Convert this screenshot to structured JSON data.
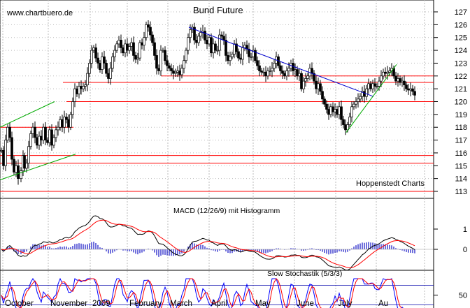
{
  "watermark": "www.chartbuero.de",
  "chart_data": [
    {
      "type": "candlestick",
      "title": "Bund Future",
      "source_label": "Hoppenstedt Charts",
      "x_months": [
        "October",
        "November",
        "2009",
        "February",
        "March",
        "April",
        "May",
        "June",
        "July",
        "Au"
      ],
      "ylim": [
        113,
        127
      ],
      "y_ticks": [
        113,
        114,
        115,
        116,
        117,
        118,
        119,
        120,
        121,
        122,
        123,
        124,
        125,
        126,
        127
      ],
      "horizontal_levels": [
        113.0,
        115.2,
        115.8,
        118.0,
        120.0,
        121.5,
        122.0
      ],
      "close_path": [
        [
          0,
          116.2
        ],
        [
          3,
          115.0
        ],
        [
          6,
          117.0
        ],
        [
          9,
          118.0
        ],
        [
          12,
          117.2
        ],
        [
          15,
          115.5
        ],
        [
          18,
          114.5
        ],
        [
          21,
          115.0
        ],
        [
          24,
          114.0
        ],
        [
          28,
          114.6
        ],
        [
          31,
          115.8
        ],
        [
          33,
          114.8
        ],
        [
          36,
          115.2
        ],
        [
          39,
          116.5
        ],
        [
          42,
          117.5
        ],
        [
          45,
          118.0
        ],
        [
          48,
          117.2
        ],
        [
          51,
          116.6
        ],
        [
          54,
          117.3
        ],
        [
          57,
          117.0
        ],
        [
          60,
          118.0
        ],
        [
          63,
          117.0
        ],
        [
          66,
          116.8
        ],
        [
          69,
          117.8
        ],
        [
          72,
          116.6
        ],
        [
          75,
          117.2
        ],
        [
          78,
          117.8
        ],
        [
          81,
          118.0
        ],
        [
          84,
          118.6
        ],
        [
          87,
          118.0
        ],
        [
          90,
          118.8
        ],
        [
          93,
          118.6
        ],
        [
          96,
          118.0
        ],
        [
          99,
          119.0
        ],
        [
          102,
          120.0
        ],
        [
          105,
          121.0
        ],
        [
          108,
          120.6
        ],
        [
          111,
          121.2
        ],
        [
          114,
          121.0
        ],
        [
          117,
          121.2
        ],
        [
          120,
          121.3
        ],
        [
          123,
          122.2
        ],
        [
          126,
          123.0
        ],
        [
          129,
          124.0
        ],
        [
          132,
          124.2
        ],
        [
          135,
          123.4
        ],
        [
          138,
          123.0
        ],
        [
          141,
          122.5
        ],
        [
          144,
          123.5
        ],
        [
          147,
          123.0
        ],
        [
          150,
          122.2
        ],
        [
          153,
          121.8
        ],
        [
          156,
          122.6
        ],
        [
          159,
          123.5
        ],
        [
          162,
          124.0
        ],
        [
          165,
          124.5
        ],
        [
          168,
          124.8
        ],
        [
          171,
          124.2
        ],
        [
          174,
          123.8
        ],
        [
          177,
          124.5
        ],
        [
          180,
          124.0
        ],
        [
          183,
          124.3
        ],
        [
          186,
          124.6
        ],
        [
          189,
          123.6
        ],
        [
          192,
          123.3
        ],
        [
          195,
          123.4
        ],
        [
          198,
          124.6
        ],
        [
          201,
          124.4
        ],
        [
          204,
          125.0
        ],
        [
          207,
          126.0
        ],
        [
          210,
          125.8
        ],
        [
          213,
          125.2
        ],
        [
          216,
          124.6
        ],
        [
          219,
          123.6
        ],
        [
          222,
          122.6
        ],
        [
          225,
          122.4
        ],
        [
          228,
          124.0
        ],
        [
          231,
          124.0
        ],
        [
          234,
          123.2
        ],
        [
          237,
          122.8
        ],
        [
          240,
          122.6
        ],
        [
          243,
          122.4
        ],
        [
          246,
          122.2
        ],
        [
          249,
          122.3
        ],
        [
          252,
          122.4
        ],
        [
          255,
          122.1
        ],
        [
          258,
          122.6
        ],
        [
          261,
          123.2
        ],
        [
          264,
          124.0
        ],
        [
          267,
          125.0
        ],
        [
          270,
          125.6
        ],
        [
          273,
          125.8
        ],
        [
          276,
          124.8
        ],
        [
          279,
          124.6
        ],
        [
          282,
          125.1
        ],
        [
          285,
          125.4
        ],
        [
          288,
          125.5
        ],
        [
          291,
          124.8
        ],
        [
          294,
          124.5
        ],
        [
          297,
          125.0
        ],
        [
          300,
          123.8
        ],
        [
          303,
          124.5
        ],
        [
          306,
          124.0
        ],
        [
          309,
          124.0
        ],
        [
          312,
          125.2
        ],
        [
          315,
          125.1
        ],
        [
          318,
          124.8
        ],
        [
          321,
          123.6
        ],
        [
          324,
          123.2
        ],
        [
          327,
          123.5
        ],
        [
          330,
          123.7
        ],
        [
          333,
          124.5
        ],
        [
          336,
          123.9
        ],
        [
          339,
          123.4
        ],
        [
          342,
          123.3
        ],
        [
          345,
          124.2
        ],
        [
          348,
          124.4
        ],
        [
          351,
          124.1
        ],
        [
          354,
          123.5
        ],
        [
          357,
          123.5
        ],
        [
          360,
          124.0
        ],
        [
          363,
          123.2
        ],
        [
          366,
          122.8
        ],
        [
          369,
          122.4
        ],
        [
          372,
          122.3
        ],
        [
          375,
          122.3
        ],
        [
          378,
          122.0
        ],
        [
          381,
          122.4
        ],
        [
          384,
          122.4
        ],
        [
          387,
          122.6
        ],
        [
          390,
          123.0
        ],
        [
          393,
          123.5
        ],
        [
          396,
          122.8
        ],
        [
          399,
          122.4
        ],
        [
          402,
          122.2
        ],
        [
          405,
          122.0
        ],
        [
          408,
          122.4
        ],
        [
          411,
          122.6
        ],
        [
          414,
          123.0
        ],
        [
          417,
          122.4
        ],
        [
          420,
          122.5
        ],
        [
          423,
          122.0
        ],
        [
          426,
          122.2
        ],
        [
          429,
          121.0
        ],
        [
          432,
          121.6
        ],
        [
          435,
          121.8
        ],
        [
          438,
          122.0
        ],
        [
          441,
          122.6
        ],
        [
          444,
          122.2
        ],
        [
          447,
          121.6
        ],
        [
          450,
          121.0
        ],
        [
          453,
          121.4
        ],
        [
          456,
          120.8
        ],
        [
          459,
          120.2
        ],
        [
          462,
          119.8
        ],
        [
          465,
          119.4
        ],
        [
          468,
          119.0
        ],
        [
          471,
          119.6
        ],
        [
          474,
          119.2
        ],
        [
          477,
          119.4
        ],
        [
          480,
          119.0
        ],
        [
          483,
          119.6
        ],
        [
          486,
          118.6
        ],
        [
          489,
          118.2
        ],
        [
          492,
          117.8
        ],
        [
          495,
          118.2
        ],
        [
          498,
          118.8
        ],
        [
          501,
          119.6
        ],
        [
          504,
          119.8
        ],
        [
          507,
          120.0
        ],
        [
          510,
          120.2
        ],
        [
          513,
          120.4
        ],
        [
          516,
          120.8
        ],
        [
          519,
          120.4
        ],
        [
          522,
          121.0
        ],
        [
          525,
          121.4
        ],
        [
          528,
          121.0
        ],
        [
          531,
          121.4
        ],
        [
          534,
          121.2
        ],
        [
          537,
          121.2
        ],
        [
          540,
          121.6
        ],
        [
          543,
          122.0
        ],
        [
          546,
          122.3
        ],
        [
          549,
          122.2
        ],
        [
          552,
          122.3
        ],
        [
          555,
          122.4
        ],
        [
          558,
          122.6
        ],
        [
          561,
          122.0
        ],
        [
          564,
          121.6
        ],
        [
          567,
          121.8
        ],
        [
          570,
          121.5
        ],
        [
          573,
          121.6
        ],
        [
          576,
          121.3
        ],
        [
          579,
          121.0
        ],
        [
          582,
          120.9
        ],
        [
          585,
          121.0
        ],
        [
          588,
          120.8
        ],
        [
          591,
          120.5
        ]
      ],
      "trendlines": [
        {
          "name": "resistance",
          "color": "#0000cc",
          "from": [
            270,
            125.8
          ],
          "to": [
            534,
            120.4
          ]
        },
        {
          "name": "support-1",
          "color": "#00aa00",
          "from": [
            0,
            118.0
          ],
          "to": [
            78,
            120.0
          ]
        },
        {
          "name": "support-2",
          "color": "#00aa00",
          "from": [
            0,
            113.9
          ],
          "to": [
            108,
            115.9
          ]
        },
        {
          "name": "support-3",
          "color": "#00aa00",
          "from": [
            495,
            117.6
          ],
          "to": [
            567,
            122.9
          ]
        }
      ]
    },
    {
      "type": "line",
      "title": "MACD (12/26/9) mit Histogramm",
      "ylim": [
        -1.6,
        1.6
      ],
      "y_ticks": [
        1,
        0
      ]
    },
    {
      "type": "line",
      "title": "Slow Stochastik (5/3/3)",
      "ylim": [
        0,
        100
      ],
      "y_ticks": [
        50
      ],
      "levels": [
        20,
        80
      ]
    }
  ],
  "colors": {
    "grid": "#bbbbbb",
    "red_line": "#ff0000",
    "blue_line": "#0000cc",
    "green_line": "#00aa00",
    "macd": "#000000",
    "signal": "#ff0000",
    "histogram": "#3333cc",
    "stoch_k": "#0000ff",
    "stoch_d": "#ff0000"
  }
}
